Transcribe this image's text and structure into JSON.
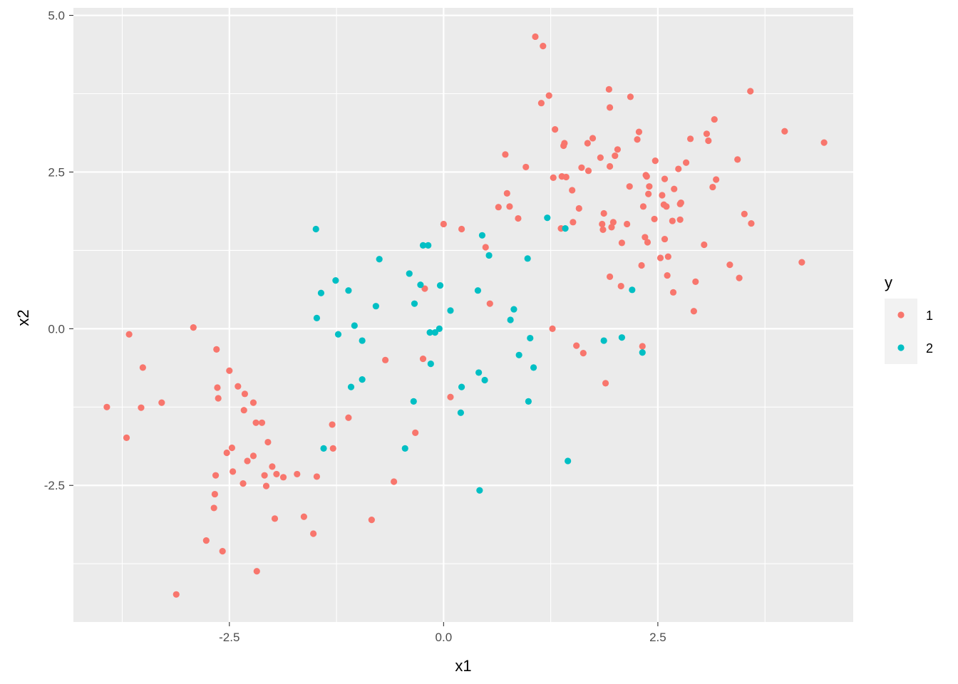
{
  "chart_data": {
    "type": "scatter",
    "xlabel": "x1",
    "ylabel": "x2",
    "xlim": [
      -4.32,
      4.78
    ],
    "ylim": [
      -4.68,
      5.12
    ],
    "x_ticks": [
      -2.5,
      0.0,
      2.5
    ],
    "x_tick_labels": [
      "-2.5",
      "0.0",
      "2.5"
    ],
    "y_ticks": [
      -2.5,
      0.0,
      2.5,
      5.0
    ],
    "y_tick_labels": [
      "-2.5",
      "0.0",
      "2.5",
      "5.0"
    ],
    "grid": true,
    "legend": {
      "title": "y",
      "position": "right"
    },
    "series": [
      {
        "name": "1",
        "color": "#F8766D",
        "points": [
          [
            -3.93,
            -1.25
          ],
          [
            -3.7,
            -1.74
          ],
          [
            -3.67,
            -0.09
          ],
          [
            -3.53,
            -1.26
          ],
          [
            -3.51,
            -0.62
          ],
          [
            -3.29,
            -1.18
          ],
          [
            -3.12,
            -4.24
          ],
          [
            -2.92,
            0.02
          ],
          [
            -2.77,
            -3.38
          ],
          [
            -2.68,
            -2.86
          ],
          [
            -2.67,
            -2.64
          ],
          [
            -2.66,
            -2.34
          ],
          [
            -2.65,
            -0.33
          ],
          [
            -2.64,
            -0.94
          ],
          [
            -2.63,
            -1.11
          ],
          [
            -2.58,
            -3.55
          ],
          [
            -2.53,
            -1.98
          ],
          [
            -2.5,
            -0.67
          ],
          [
            -2.47,
            -1.9
          ],
          [
            -2.46,
            -2.28
          ],
          [
            -2.4,
            -0.92
          ],
          [
            -2.34,
            -2.47
          ],
          [
            -2.33,
            -1.3
          ],
          [
            -2.32,
            -1.04
          ],
          [
            -2.29,
            -2.11
          ],
          [
            -2.22,
            -2.03
          ],
          [
            -2.22,
            -1.18
          ],
          [
            -2.19,
            -1.5
          ],
          [
            -2.18,
            -3.87
          ],
          [
            -2.12,
            -1.5
          ],
          [
            -2.09,
            -2.34
          ],
          [
            -2.07,
            -2.51
          ],
          [
            -2.05,
            -1.81
          ],
          [
            -2.0,
            -2.2
          ],
          [
            -1.97,
            -3.03
          ],
          [
            -1.95,
            -2.32
          ],
          [
            -1.87,
            -2.37
          ],
          [
            -1.71,
            -2.32
          ],
          [
            -1.63,
            -3.0
          ],
          [
            -1.52,
            -3.27
          ],
          [
            -1.48,
            -2.36
          ],
          [
            -1.3,
            -1.53
          ],
          [
            -1.29,
            -1.91
          ],
          [
            -1.11,
            -1.42
          ],
          [
            -0.84,
            -3.05
          ],
          [
            -0.68,
            -0.5
          ],
          [
            -0.58,
            -2.44
          ],
          [
            -0.33,
            -1.66
          ],
          [
            -0.24,
            -0.48
          ],
          [
            -0.22,
            0.64
          ],
          [
            0.0,
            1.67
          ],
          [
            0.08,
            -1.09
          ],
          [
            0.21,
            1.59
          ],
          [
            0.49,
            1.3
          ],
          [
            0.54,
            0.4
          ],
          [
            0.64,
            1.94
          ],
          [
            0.72,
            2.78
          ],
          [
            0.74,
            2.16
          ],
          [
            0.77,
            1.95
          ],
          [
            0.87,
            1.76
          ],
          [
            0.96,
            2.58
          ],
          [
            1.07,
            4.66
          ],
          [
            1.14,
            3.6
          ],
          [
            1.16,
            4.51
          ],
          [
            1.23,
            3.72
          ],
          [
            1.27,
            0.0
          ],
          [
            1.28,
            2.41
          ],
          [
            1.3,
            3.18
          ],
          [
            1.37,
            1.6
          ],
          [
            1.38,
            2.43
          ],
          [
            1.4,
            2.92
          ],
          [
            1.41,
            2.96
          ],
          [
            1.43,
            2.42
          ],
          [
            1.5,
            2.21
          ],
          [
            1.51,
            1.7
          ],
          [
            1.55,
            -0.27
          ],
          [
            1.58,
            1.92
          ],
          [
            1.61,
            2.57
          ],
          [
            1.63,
            -0.39
          ],
          [
            1.68,
            2.96
          ],
          [
            1.69,
            2.52
          ],
          [
            1.74,
            3.04
          ],
          [
            1.83,
            2.73
          ],
          [
            1.85,
            1.67
          ],
          [
            1.86,
            1.58
          ],
          [
            1.87,
            1.84
          ],
          [
            1.89,
            -0.87
          ],
          [
            1.93,
            3.82
          ],
          [
            1.94,
            3.53
          ],
          [
            1.94,
            2.59
          ],
          [
            1.94,
            0.83
          ],
          [
            1.96,
            1.62
          ],
          [
            1.98,
            1.7
          ],
          [
            2.0,
            2.76
          ],
          [
            2.03,
            2.86
          ],
          [
            2.07,
            0.68
          ],
          [
            2.08,
            1.37
          ],
          [
            2.14,
            1.67
          ],
          [
            2.17,
            2.27
          ],
          [
            2.18,
            3.7
          ],
          [
            2.26,
            3.02
          ],
          [
            2.28,
            3.14
          ],
          [
            2.31,
            1.01
          ],
          [
            2.32,
            -0.28
          ],
          [
            2.33,
            1.95
          ],
          [
            2.35,
            1.46
          ],
          [
            2.36,
            2.45
          ],
          [
            2.37,
            2.43
          ],
          [
            2.38,
            1.38
          ],
          [
            2.39,
            2.15
          ],
          [
            2.4,
            2.27
          ],
          [
            2.46,
            1.75
          ],
          [
            2.47,
            2.68
          ],
          [
            2.53,
            1.13
          ],
          [
            2.55,
            2.13
          ],
          [
            2.57,
            1.98
          ],
          [
            2.58,
            2.39
          ],
          [
            2.58,
            1.43
          ],
          [
            2.6,
            1.95
          ],
          [
            2.61,
            0.85
          ],
          [
            2.62,
            1.15
          ],
          [
            2.67,
            1.72
          ],
          [
            2.68,
            0.58
          ],
          [
            2.69,
            2.23
          ],
          [
            2.74,
            2.55
          ],
          [
            2.76,
            1.99
          ],
          [
            2.76,
            1.74
          ],
          [
            2.77,
            2.01
          ],
          [
            2.83,
            2.65
          ],
          [
            2.88,
            3.03
          ],
          [
            2.92,
            0.28
          ],
          [
            2.94,
            0.75
          ],
          [
            3.04,
            1.34
          ],
          [
            3.07,
            3.11
          ],
          [
            3.09,
            3.0
          ],
          [
            3.14,
            2.26
          ],
          [
            3.16,
            3.34
          ],
          [
            3.18,
            2.38
          ],
          [
            3.34,
            1.02
          ],
          [
            3.43,
            2.7
          ],
          [
            3.45,
            0.81
          ],
          [
            3.51,
            1.83
          ],
          [
            3.58,
            3.79
          ],
          [
            3.59,
            1.68
          ],
          [
            3.98,
            3.15
          ],
          [
            4.18,
            1.06
          ],
          [
            4.44,
            2.97
          ]
        ]
      },
      {
        "name": "2",
        "color": "#00BFC4",
        "points": [
          [
            -1.49,
            1.59
          ],
          [
            -1.48,
            0.17
          ],
          [
            -1.43,
            0.57
          ],
          [
            -1.4,
            -1.91
          ],
          [
            -1.26,
            0.77
          ],
          [
            -1.23,
            -0.09
          ],
          [
            -1.11,
            0.61
          ],
          [
            -1.08,
            -0.93
          ],
          [
            -1.04,
            0.05
          ],
          [
            -0.95,
            -0.81
          ],
          [
            -0.95,
            -0.19
          ],
          [
            -0.79,
            0.36
          ],
          [
            -0.75,
            1.11
          ],
          [
            -0.45,
            -1.91
          ],
          [
            -0.4,
            0.88
          ],
          [
            -0.35,
            -1.16
          ],
          [
            -0.34,
            0.4
          ],
          [
            -0.27,
            0.7
          ],
          [
            -0.24,
            1.33
          ],
          [
            -0.18,
            1.33
          ],
          [
            -0.16,
            -0.06
          ],
          [
            -0.15,
            -0.56
          ],
          [
            -0.1,
            -0.06
          ],
          [
            -0.05,
            0.0
          ],
          [
            -0.04,
            0.69
          ],
          [
            0.08,
            0.29
          ],
          [
            0.2,
            -1.34
          ],
          [
            0.21,
            -0.93
          ],
          [
            0.4,
            0.61
          ],
          [
            0.41,
            -0.7
          ],
          [
            0.42,
            -2.58
          ],
          [
            0.45,
            1.49
          ],
          [
            0.48,
            -0.82
          ],
          [
            0.53,
            1.17
          ],
          [
            0.78,
            0.14
          ],
          [
            0.82,
            0.31
          ],
          [
            0.88,
            -0.42
          ],
          [
            0.98,
            1.12
          ],
          [
            0.99,
            -1.16
          ],
          [
            1.01,
            -0.15
          ],
          [
            1.05,
            -0.62
          ],
          [
            1.21,
            1.77
          ],
          [
            1.42,
            1.6
          ],
          [
            1.45,
            -2.11
          ],
          [
            1.87,
            -0.19
          ],
          [
            2.08,
            -0.14
          ],
          [
            2.2,
            0.62
          ],
          [
            2.32,
            -0.38
          ]
        ]
      }
    ]
  }
}
